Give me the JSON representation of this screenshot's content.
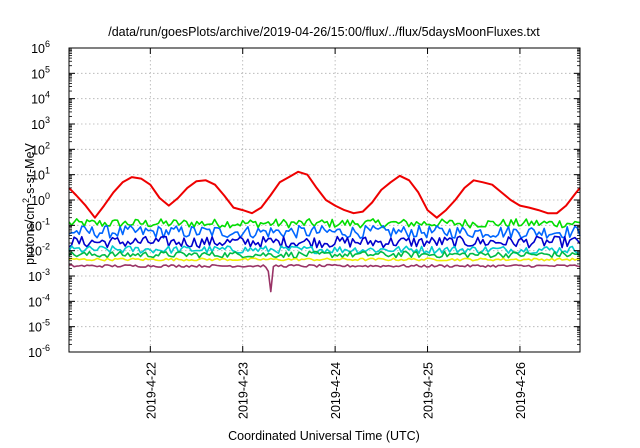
{
  "chart_data": {
    "type": "line",
    "title": "/data/run/goesPlots/archive/2019-04-26/15:00/flux/../flux/5daysMoonFluxes.txt",
    "xlabel": "Coordinated Universal Time (UTC)",
    "ylabel_parts": {
      "base": "protons/cm",
      "exp": "2",
      "suffix": "-s-sr-MeV"
    },
    "yscale": "log",
    "ylim_exp": [
      -6,
      6
    ],
    "ytick_exps": [
      "-6",
      "-5",
      "-4",
      "-3",
      "-2",
      "-1",
      "0",
      "1",
      "2",
      "3",
      "4",
      "5",
      "6"
    ],
    "ytick_base": "10",
    "xlim_days": [
      21.12,
      26.65
    ],
    "xticks": [
      {
        "label": "2019-4-22",
        "day": 22
      },
      {
        "label": "2019-4-23",
        "day": 23
      },
      {
        "label": "2019-4-24",
        "day": 24
      },
      {
        "label": "2019-4-25",
        "day": 25
      },
      {
        "label": "2019-4-26",
        "day": 26
      }
    ],
    "grid": true,
    "series": [
      {
        "color": "#ee0000",
        "x": [
          21.12,
          21.2,
          21.3,
          21.4,
          21.5,
          21.6,
          21.7,
          21.8,
          21.9,
          22.0,
          22.1,
          22.2,
          22.3,
          22.4,
          22.5,
          22.6,
          22.7,
          22.8,
          22.9,
          23.0,
          23.1,
          23.2,
          23.3,
          23.4,
          23.5,
          23.6,
          23.7,
          23.8,
          23.9,
          24.0,
          24.1,
          24.2,
          24.3,
          24.4,
          24.5,
          24.6,
          24.7,
          24.8,
          24.9,
          25.0,
          25.1,
          25.2,
          25.3,
          25.4,
          25.5,
          25.6,
          25.7,
          25.8,
          25.9,
          26.0,
          26.1,
          26.2,
          26.3,
          26.4,
          26.5,
          26.6,
          26.65
        ],
        "y": [
          3,
          1.5,
          0.6,
          0.2,
          0.6,
          2,
          5,
          8,
          7,
          4,
          1.2,
          0.6,
          1.2,
          3,
          5.5,
          6,
          4,
          1.5,
          0.5,
          0.4,
          0.3,
          0.5,
          1.5,
          5,
          8,
          13,
          10,
          3,
          1,
          0.6,
          0.4,
          0.3,
          0.35,
          0.8,
          2.5,
          5,
          9,
          6,
          2,
          0.4,
          0.2,
          0.4,
          1,
          3,
          6,
          5,
          4,
          2,
          1,
          0.6,
          0.5,
          0.4,
          0.3,
          0.3,
          0.6,
          1.8,
          3
        ]
      },
      {
        "color": "#00dd00",
        "x": [
          21.12,
          26.65
        ],
        "y": [
          0.12,
          0.12
        ],
        "noise": 0.35
      },
      {
        "color": "#0066ff",
        "x": [
          21.12,
          26.65
        ],
        "y": [
          0.055,
          0.055
        ],
        "noise": 0.5
      },
      {
        "color": "#0000cc",
        "x": [
          21.12,
          26.65
        ],
        "y": [
          0.022,
          0.022
        ],
        "noise": 0.45
      },
      {
        "color": "#00cccc",
        "x": [
          21.12,
          26.65
        ],
        "y": [
          0.011,
          0.011
        ],
        "noise": 0.3
      },
      {
        "color": "#00bb44",
        "x": [
          21.12,
          26.65
        ],
        "y": [
          0.007,
          0.007
        ],
        "noise": 0.25
      },
      {
        "color": "#eeee00",
        "x": [
          21.12,
          26.65
        ],
        "y": [
          0.0045,
          0.0045
        ],
        "noise": 0.1
      },
      {
        "color": "#993366",
        "x": [
          21.12,
          23.27,
          23.285,
          23.3,
          23.315,
          26.65
        ],
        "y": [
          0.0025,
          0.0025,
          0.0007,
          8e-05,
          0.0025,
          0.0025
        ],
        "noise": 0.1
      }
    ]
  }
}
